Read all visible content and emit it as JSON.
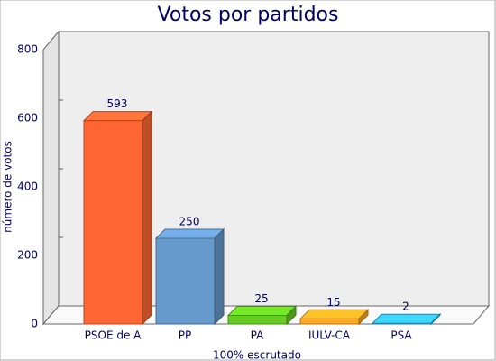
{
  "chart_data": {
    "type": "bar3d",
    "title": "Votos por partidos",
    "y_label": "número de votos",
    "x_label": "100% escrutado",
    "categories": [
      "PSOE de A",
      "PP",
      "PA",
      "IULV-CA",
      "PSA"
    ],
    "values": [
      593,
      250,
      25,
      15,
      2
    ],
    "colors": [
      "#ff6633",
      "#6699cc",
      "#66cc22",
      "#ffaa22",
      "#33bbee"
    ],
    "ylim": [
      0,
      800
    ],
    "yticks": [
      0,
      200,
      400,
      600,
      800
    ]
  }
}
